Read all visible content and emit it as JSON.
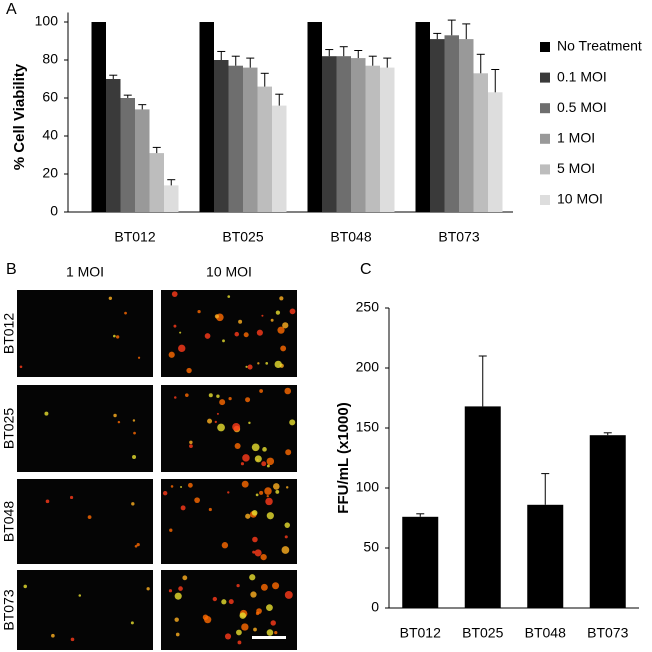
{
  "panels": {
    "a": "A",
    "b": "B",
    "c": "C"
  },
  "micrographs": {
    "columns": [
      "1 MOI",
      "10 MOI"
    ],
    "rows": [
      "BT012",
      "BT025",
      "BT048",
      "BT073"
    ]
  },
  "chart_data": [
    {
      "type": "grouped-bar",
      "ylabel": "% Cell Viability",
      "categories": [
        "BT012",
        "BT025",
        "BT048",
        "BT073"
      ],
      "series": [
        {
          "name": "No Treatment",
          "color": "#000000",
          "values": [
            100,
            100,
            100,
            100
          ]
        },
        {
          "name": "0.1 MOI",
          "color": "#3a3a3a",
          "values": [
            70,
            80,
            82,
            91
          ],
          "errors": [
            2,
            4.5,
            3.5,
            3
          ]
        },
        {
          "name": "0.5 MOI",
          "color": "#6e6e6e",
          "values": [
            60,
            77,
            82,
            93
          ],
          "errors": [
            1.5,
            5,
            5,
            8
          ]
        },
        {
          "name": "1 MOI",
          "color": "#999999",
          "values": [
            54,
            76,
            81,
            91
          ],
          "errors": [
            2.5,
            5,
            4,
            8
          ]
        },
        {
          "name": "5 MOI",
          "color": "#bdbdbd",
          "values": [
            31,
            66,
            77,
            73
          ],
          "errors": [
            3,
            7,
            5,
            10
          ]
        },
        {
          "name": "10 MOI",
          "color": "#dddddd",
          "values": [
            14,
            56,
            76,
            63
          ],
          "errors": [
            3,
            6,
            5,
            12
          ]
        }
      ],
      "ylim": [
        0,
        105
      ],
      "yticks": [
        0,
        20,
        40,
        60,
        80,
        100
      ],
      "legend": "right"
    },
    {
      "type": "bar",
      "ylabel": "FFU/mL (x1000)",
      "categories": [
        "BT012",
        "BT025",
        "BT048",
        "BT073"
      ],
      "values": [
        76,
        168,
        86,
        144
      ],
      "errors": [
        2.5,
        42,
        26,
        2
      ],
      "color": "#000000",
      "ylim": [
        0,
        250
      ],
      "yticks": [
        0,
        50,
        100,
        150,
        200,
        250
      ]
    }
  ]
}
